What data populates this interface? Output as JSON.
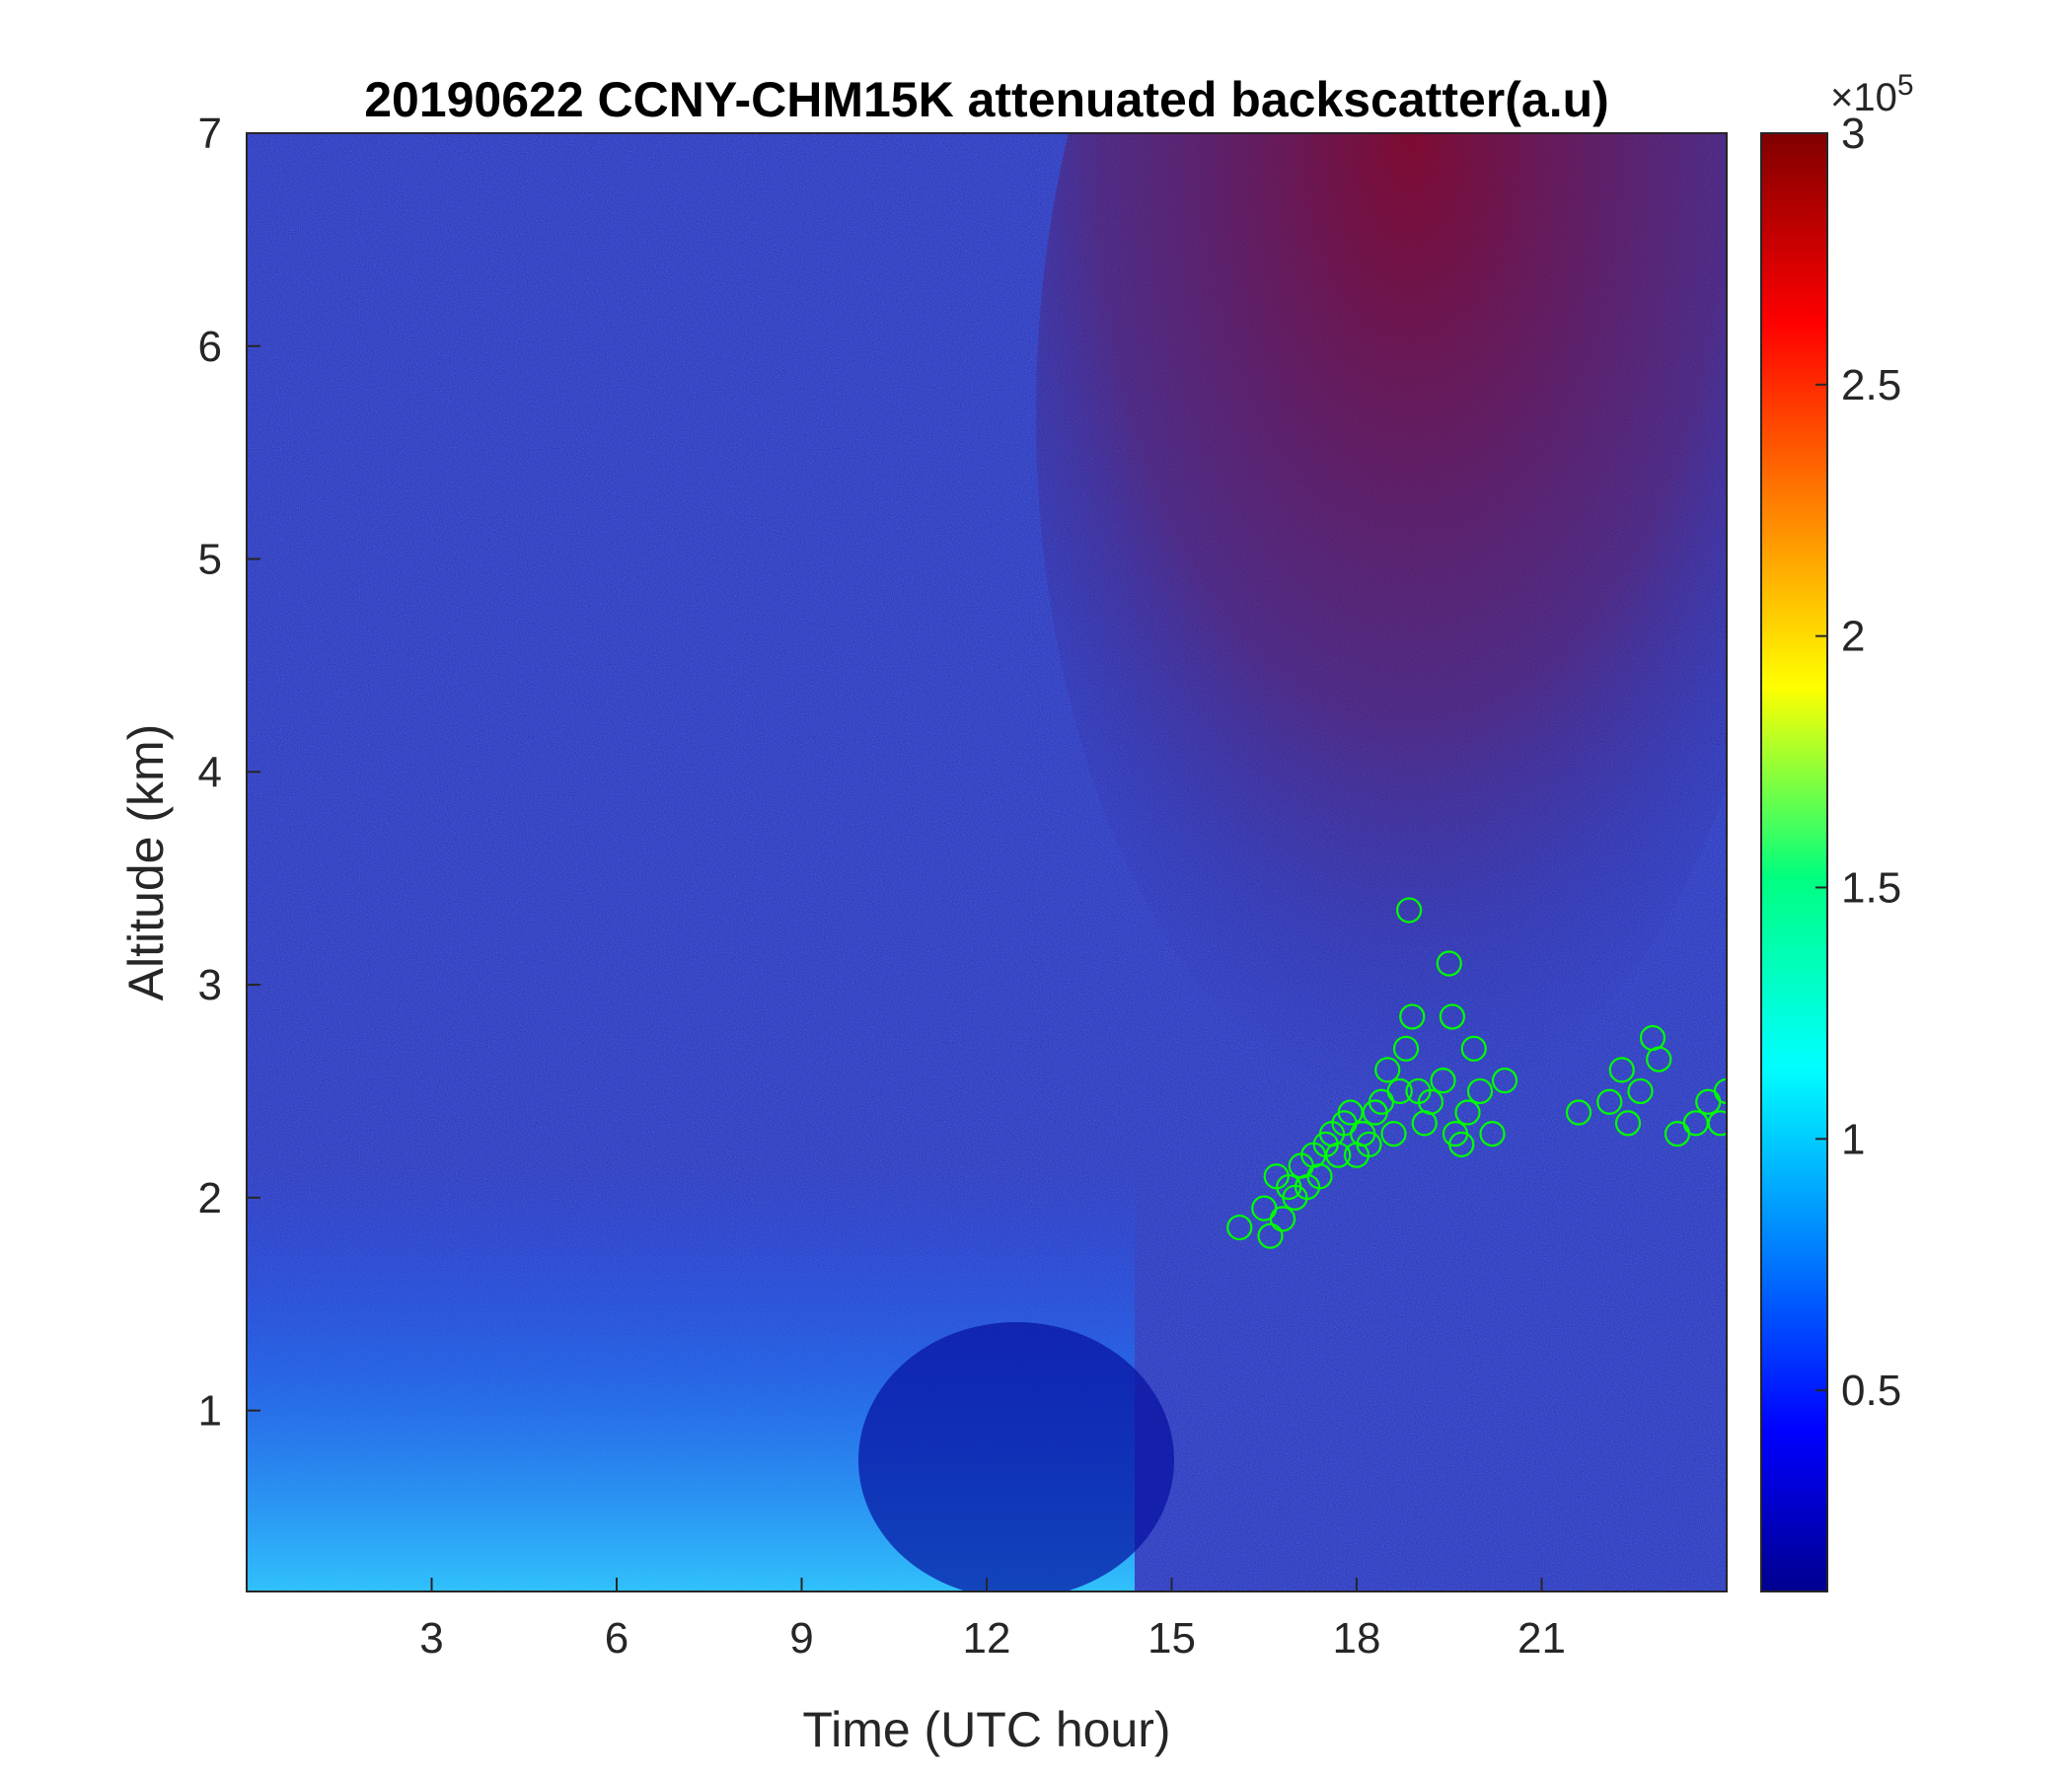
{
  "chart_data": {
    "type": "heatmap",
    "title": "20190622 CCNY-CHM15K attenuated backscatter(a.u)",
    "xlabel": "Time (UTC hour)",
    "ylabel": "Altitude (km)",
    "xlim": [
      0,
      24
    ],
    "ylim": [
      0.15,
      7
    ],
    "x_ticks": [
      3,
      6,
      9,
      12,
      15,
      18,
      21
    ],
    "y_ticks": [
      1,
      2,
      3,
      4,
      5,
      6,
      7
    ],
    "x_tick_labels": [
      "3",
      "6",
      "9",
      "12",
      "15",
      "18",
      "21"
    ],
    "y_tick_labels": [
      "1",
      "2",
      "3",
      "4",
      "5",
      "6",
      "7"
    ],
    "colorbar": {
      "colormap": "jet",
      "range": [
        0.1,
        3
      ],
      "ticks": [
        0.5,
        1,
        1.5,
        2,
        2.5,
        3
      ],
      "tick_labels": [
        "0.5",
        "1",
        "1.5",
        "2",
        "2.5",
        "3"
      ],
      "multiplier_label": "×10",
      "multiplier_exponent": "5"
    },
    "marker_series": {
      "name": "",
      "marker": "open-circle",
      "color": "#00ff00",
      "points": [
        [
          16.1,
          1.86
        ],
        [
          16.5,
          1.95
        ],
        [
          16.6,
          1.82
        ],
        [
          16.7,
          2.1
        ],
        [
          16.8,
          1.9
        ],
        [
          16.9,
          2.05
        ],
        [
          17.0,
          2.0
        ],
        [
          17.1,
          2.15
        ],
        [
          17.2,
          2.05
        ],
        [
          17.3,
          2.2
        ],
        [
          17.4,
          2.1
        ],
        [
          17.5,
          2.25
        ],
        [
          17.6,
          2.3
        ],
        [
          17.7,
          2.2
        ],
        [
          17.8,
          2.35
        ],
        [
          17.9,
          2.4
        ],
        [
          18.0,
          2.2
        ],
        [
          18.1,
          2.3
        ],
        [
          18.2,
          2.25
        ],
        [
          18.3,
          2.4
        ],
        [
          18.4,
          2.45
        ],
        [
          18.5,
          2.6
        ],
        [
          18.6,
          2.3
        ],
        [
          18.7,
          2.5
        ],
        [
          18.8,
          2.7
        ],
        [
          18.85,
          3.35
        ],
        [
          18.9,
          2.85
        ],
        [
          19.0,
          2.5
        ],
        [
          19.1,
          2.35
        ],
        [
          19.2,
          2.45
        ],
        [
          19.4,
          2.55
        ],
        [
          19.5,
          3.1
        ],
        [
          19.55,
          2.85
        ],
        [
          19.6,
          2.3
        ],
        [
          19.7,
          2.25
        ],
        [
          19.8,
          2.4
        ],
        [
          19.9,
          2.7
        ],
        [
          20.0,
          2.5
        ],
        [
          20.2,
          2.3
        ],
        [
          20.4,
          2.55
        ],
        [
          21.6,
          2.4
        ],
        [
          22.1,
          2.45
        ],
        [
          22.3,
          2.6
        ],
        [
          22.4,
          2.35
        ],
        [
          22.6,
          2.5
        ],
        [
          22.8,
          2.75
        ],
        [
          22.9,
          2.65
        ],
        [
          23.2,
          2.3
        ],
        [
          23.5,
          2.35
        ],
        [
          23.7,
          2.45
        ],
        [
          23.9,
          2.35
        ],
        [
          24.0,
          2.5
        ]
      ]
    }
  }
}
